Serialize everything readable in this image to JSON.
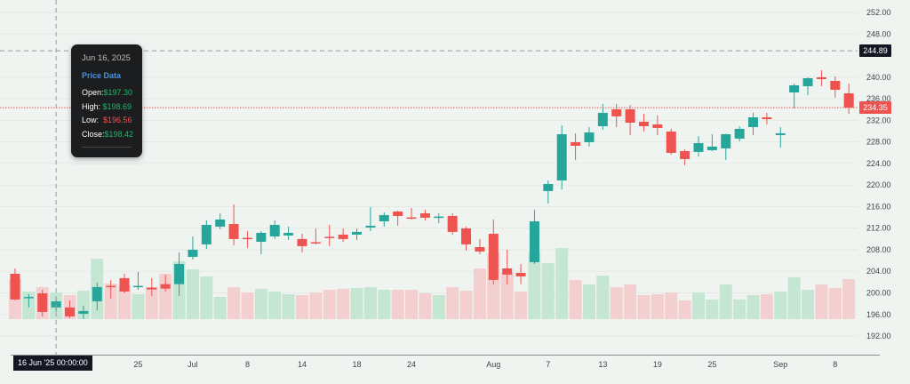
{
  "colors": {
    "up": "#26a69a",
    "down": "#ef5350",
    "vol_up": "#c5e6d3",
    "vol_down": "#f3d0cf",
    "background": "#f0f4f1"
  },
  "tooltip": {
    "date": "Jun 16, 2025",
    "heading": "Price Data",
    "open_label": "Open:",
    "open": "$197.30",
    "high_label": "High:",
    "high": "$198.69",
    "low_label": "Low:",
    "low": "$196.56",
    "close_label": "Close:",
    "close": "$198.42"
  },
  "crosshair": {
    "time_label": "16 Jun '25  00:00:00",
    "price_label": "244.89",
    "price": 244.89,
    "date": "2025-06-16"
  },
  "last_price": {
    "label": "234.35",
    "price": 234.35
  },
  "chart_data": {
    "type": "candlestick",
    "ylim": [
      190,
      254
    ],
    "price_ticks": [
      "252.00",
      "248.00",
      "240.00",
      "236.00",
      "232.00",
      "228.00",
      "224.00",
      "220.00",
      "216.00",
      "212.00",
      "208.00",
      "204.00",
      "200.00",
      "196.00",
      "192.00"
    ],
    "time_ticks": [
      {
        "label": "25",
        "date": "2025-06-25"
      },
      {
        "label": "Jul",
        "date": "2025-07-01"
      },
      {
        "label": "8",
        "date": "2025-07-08"
      },
      {
        "label": "14",
        "date": "2025-07-14"
      },
      {
        "label": "18",
        "date": "2025-07-18"
      },
      {
        "label": "24",
        "date": "2025-07-24"
      },
      {
        "label": "Aug",
        "date": "2025-08-01"
      },
      {
        "label": "7",
        "date": "2025-08-07"
      },
      {
        "label": "13",
        "date": "2025-08-13"
      },
      {
        "label": "19",
        "date": "2025-08-19"
      },
      {
        "label": "25",
        "date": "2025-08-25"
      },
      {
        "label": "Sep",
        "date": "2025-09-02"
      },
      {
        "label": "8",
        "date": "2025-09-08"
      }
    ],
    "dates": [
      "2025-06-11",
      "2025-06-12",
      "2025-06-13",
      "2025-06-16",
      "2025-06-17",
      "2025-06-18",
      "2025-06-20",
      "2025-06-23",
      "2025-06-24",
      "2025-06-25",
      "2025-06-26",
      "2025-06-27",
      "2025-06-30",
      "2025-07-01",
      "2025-07-02",
      "2025-07-03",
      "2025-07-07",
      "2025-07-08",
      "2025-07-09",
      "2025-07-10",
      "2025-07-11",
      "2025-07-14",
      "2025-07-15",
      "2025-07-16",
      "2025-07-17",
      "2025-07-18",
      "2025-07-21",
      "2025-07-22",
      "2025-07-23",
      "2025-07-24",
      "2025-07-25",
      "2025-07-28",
      "2025-07-29",
      "2025-07-30",
      "2025-07-31",
      "2025-08-01",
      "2025-08-04",
      "2025-08-05",
      "2025-08-06",
      "2025-08-07",
      "2025-08-08",
      "2025-08-11",
      "2025-08-12",
      "2025-08-13",
      "2025-08-14",
      "2025-08-15",
      "2025-08-18",
      "2025-08-19",
      "2025-08-20",
      "2025-08-21",
      "2025-08-22",
      "2025-08-25",
      "2025-08-26",
      "2025-08-27",
      "2025-08-28",
      "2025-08-29",
      "2025-09-02",
      "2025-09-03",
      "2025-09-04",
      "2025-09-05",
      "2025-09-08",
      "2025-09-09"
    ],
    "ohlc": [
      [
        203.55,
        204.54,
        198.6,
        198.77
      ],
      [
        199.1,
        199.76,
        197.29,
        199.25
      ],
      [
        199.92,
        200.58,
        195.64,
        196.46
      ],
      [
        197.3,
        198.69,
        196.56,
        198.42
      ],
      [
        197.29,
        198.6,
        195.31,
        195.64
      ],
      [
        196.13,
        197.62,
        195.14,
        196.63
      ],
      [
        198.44,
        201.9,
        196.79,
        201.08
      ],
      [
        201.3,
        202.4,
        198.93,
        201.2
      ],
      [
        202.73,
        203.55,
        199.92,
        200.25
      ],
      [
        201.15,
        203.88,
        200.58,
        201.3
      ],
      [
        200.97,
        202.73,
        199.43,
        200.64
      ],
      [
        201.62,
        203.39,
        200.25,
        200.8
      ],
      [
        201.62,
        207.5,
        199.43,
        205.36
      ],
      [
        206.68,
        210.47,
        206.19,
        208.0
      ],
      [
        208.99,
        213.44,
        208.16,
        212.61
      ],
      [
        212.28,
        214.75,
        211.79,
        213.6
      ],
      [
        212.78,
        216.4,
        208.82,
        209.98
      ],
      [
        210.2,
        211.46,
        208.33,
        210.1
      ],
      [
        209.48,
        211.46,
        207.17,
        211.13
      ],
      [
        210.47,
        213.44,
        209.98,
        212.61
      ],
      [
        210.64,
        212.28,
        209.81,
        211.13
      ],
      [
        209.98,
        210.96,
        207.5,
        208.66
      ],
      [
        209.4,
        211.95,
        208.99,
        209.3
      ],
      [
        210.4,
        212.61,
        208.66,
        210.3
      ],
      [
        210.8,
        211.95,
        209.48,
        209.98
      ],
      [
        210.8,
        211.95,
        209.81,
        211.3
      ],
      [
        212.12,
        215.91,
        211.46,
        212.45
      ],
      [
        213.27,
        214.92,
        212.28,
        214.43
      ],
      [
        215.09,
        215.25,
        212.45,
        214.26
      ],
      [
        214.0,
        215.75,
        213.6,
        213.9
      ],
      [
        214.75,
        215.42,
        213.44,
        213.93
      ],
      [
        214.0,
        214.75,
        212.94,
        214.15
      ],
      [
        214.26,
        214.75,
        210.8,
        211.3
      ],
      [
        211.95,
        212.28,
        207.83,
        208.99
      ],
      [
        208.49,
        209.98,
        207.17,
        207.67
      ],
      [
        210.96,
        213.6,
        201.57,
        202.4
      ],
      [
        204.54,
        208.0,
        201.57,
        203.39
      ],
      [
        203.71,
        205.36,
        201.62,
        203.05
      ],
      [
        205.69,
        215.42,
        205.36,
        213.27
      ],
      [
        218.88,
        220.85,
        216.57,
        220.19
      ],
      [
        220.85,
        231.07,
        219.2,
        229.42
      ],
      [
        227.94,
        229.59,
        224.64,
        227.28
      ],
      [
        227.94,
        230.74,
        227.12,
        229.75
      ],
      [
        230.91,
        235.03,
        230.25,
        233.38
      ],
      [
        234.04,
        235.03,
        230.74,
        232.72
      ],
      [
        234.04,
        234.86,
        229.26,
        231.56
      ],
      [
        231.73,
        233.21,
        229.92,
        230.91
      ],
      [
        231.24,
        232.88,
        229.26,
        230.58
      ],
      [
        229.92,
        230.41,
        225.63,
        225.96
      ],
      [
        226.29,
        226.62,
        223.65,
        224.81
      ],
      [
        226.13,
        229.09,
        225.3,
        227.77
      ],
      [
        226.46,
        229.42,
        226.29,
        227.12
      ],
      [
        226.79,
        229.5,
        224.64,
        229.42
      ],
      [
        228.6,
        230.91,
        228.1,
        230.41
      ],
      [
        230.74,
        233.38,
        229.26,
        232.55
      ],
      [
        232.55,
        233.38,
        231.24,
        232.22
      ],
      [
        229.26,
        230.74,
        226.95,
        229.59
      ],
      [
        237.17,
        238.82,
        234.2,
        238.49
      ],
      [
        238.32,
        239.97,
        236.67,
        239.8
      ],
      [
        239.97,
        241.29,
        238.32,
        239.64
      ],
      [
        239.31,
        240.14,
        236.18,
        237.66
      ],
      [
        237.0,
        238.82,
        233.21,
        234.35
      ]
    ],
    "volume": [
      45,
      31,
      36,
      30,
      27,
      32,
      68,
      40,
      38,
      28,
      36,
      51,
      65,
      56,
      48,
      25,
      36,
      30,
      34,
      31,
      28,
      27,
      30,
      33,
      34,
      35,
      36,
      33,
      33,
      33,
      29,
      27,
      36,
      32,
      57,
      74,
      53,
      31,
      76,
      63,
      80,
      44,
      39,
      49,
      36,
      39,
      27,
      28,
      30,
      21,
      30,
      22,
      39,
      22,
      27,
      28,
      31,
      47,
      33,
      39,
      35,
      45
    ],
    "grid": true
  }
}
